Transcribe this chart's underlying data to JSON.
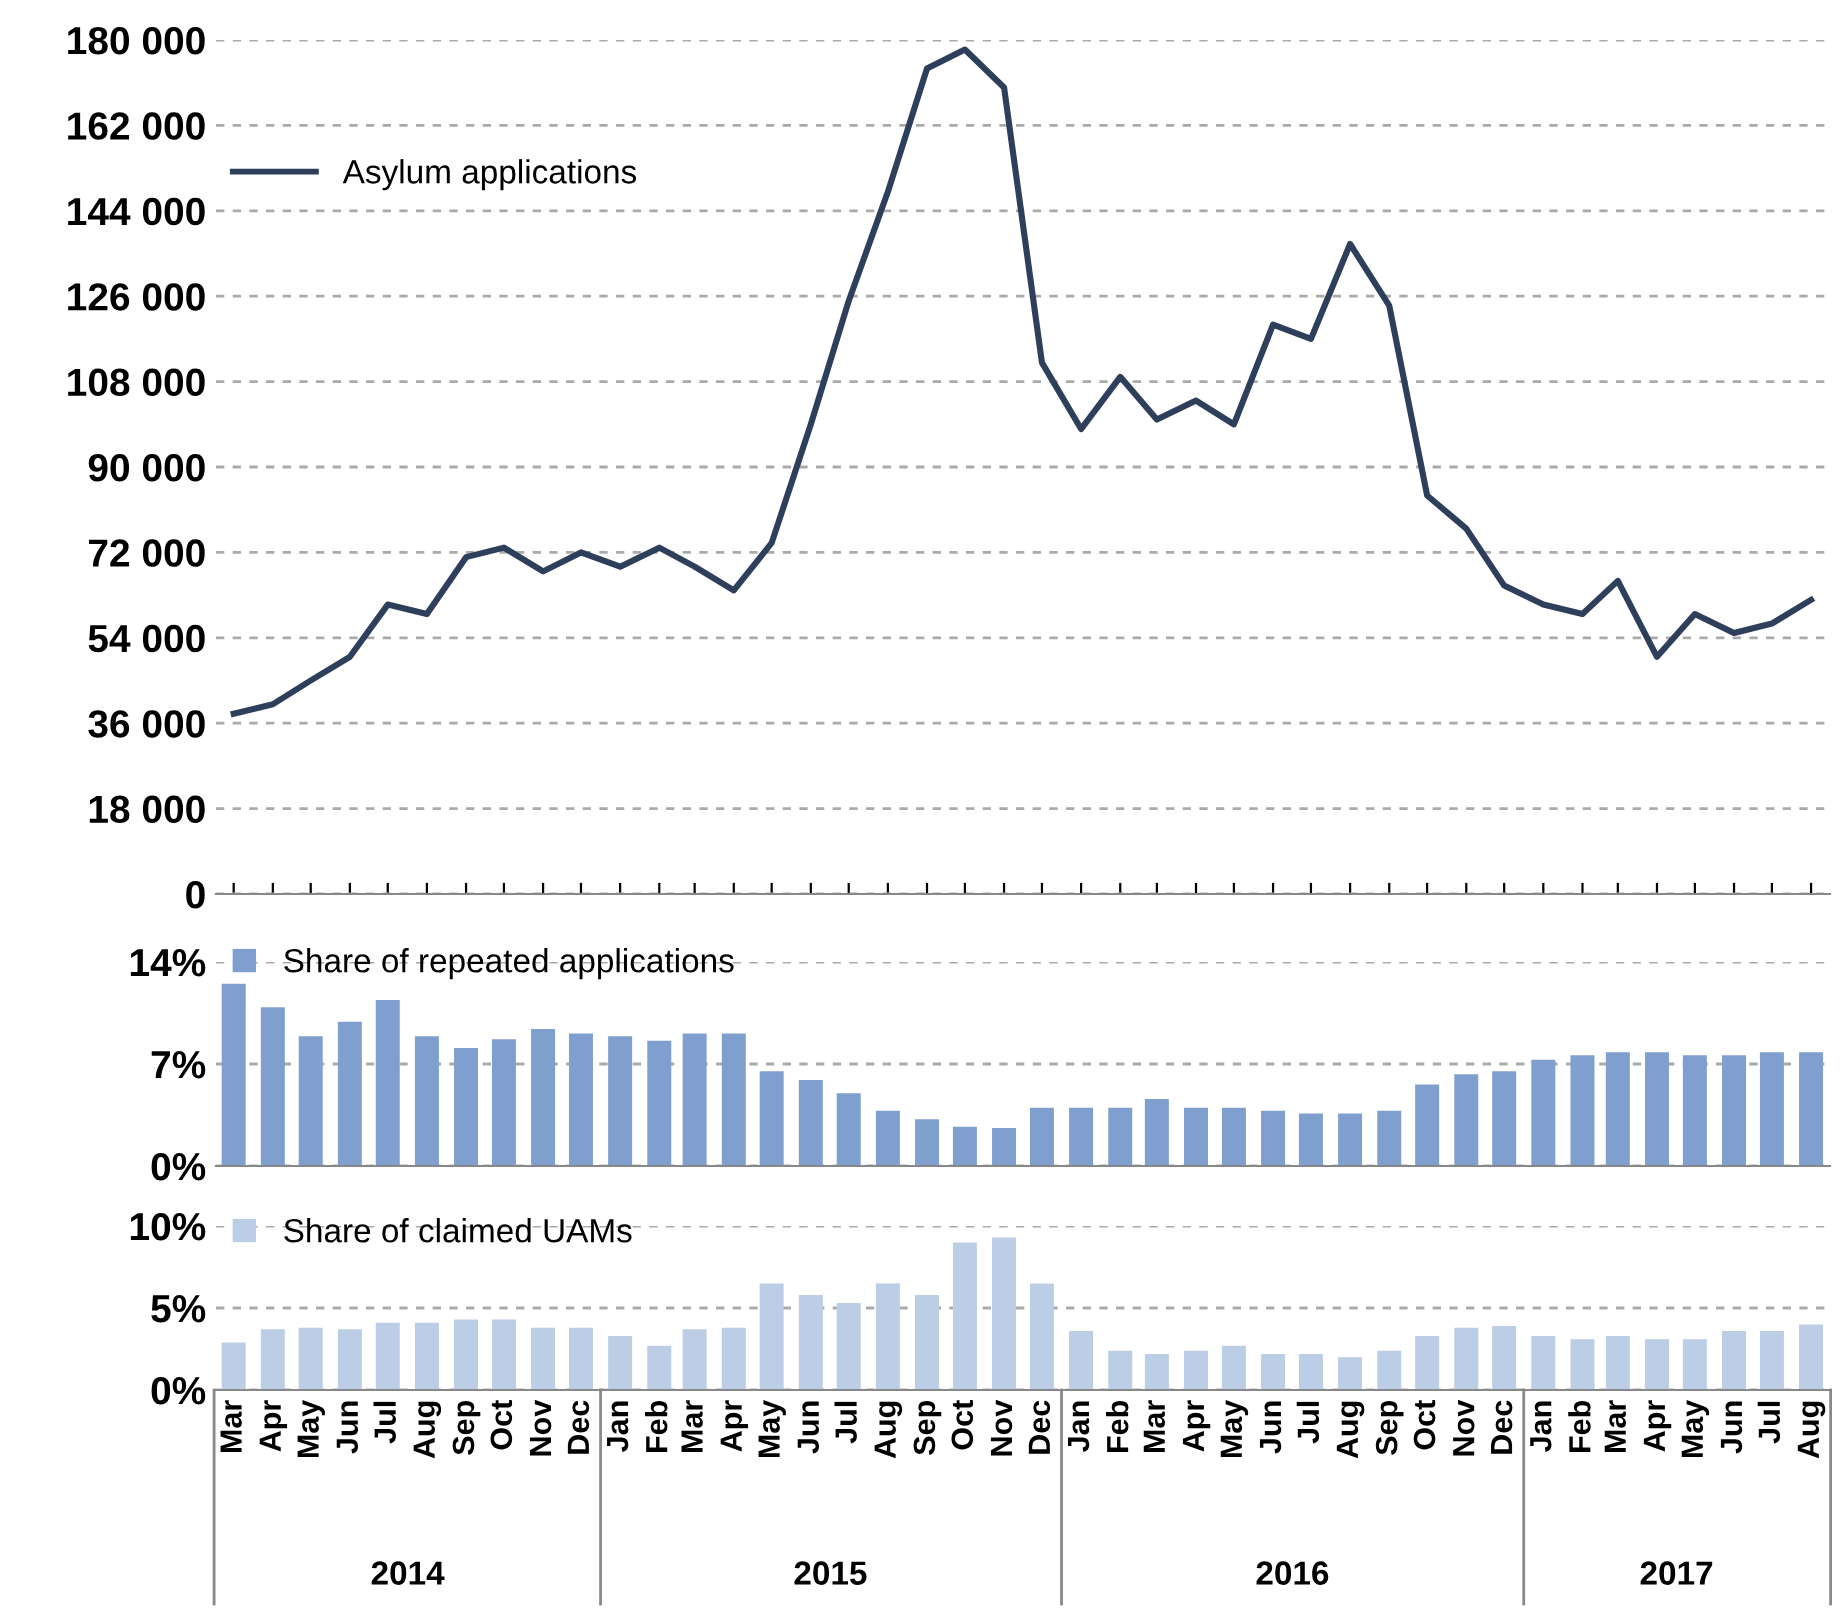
{
  "chart_data": [
    {
      "type": "line",
      "x": [
        "2014-03",
        "2014-04",
        "2014-05",
        "2014-06",
        "2014-07",
        "2014-08",
        "2014-09",
        "2014-10",
        "2014-11",
        "2014-12",
        "2015-01",
        "2015-02",
        "2015-03",
        "2015-04",
        "2015-05",
        "2015-06",
        "2015-07",
        "2015-08",
        "2015-09",
        "2015-10",
        "2015-11",
        "2015-12",
        "2016-01",
        "2016-02",
        "2016-03",
        "2016-04",
        "2016-05",
        "2016-06",
        "2016-07",
        "2016-08",
        "2016-09",
        "2016-10",
        "2016-11",
        "2016-12",
        "2017-01",
        "2017-02",
        "2017-03",
        "2017-04",
        "2017-05",
        "2017-06",
        "2017-07",
        "2017-08"
      ],
      "series": [
        {
          "name": "Asylum applications",
          "color": "#2e3f5c",
          "values": [
            38000,
            40000,
            45000,
            50000,
            61000,
            59000,
            71000,
            73000,
            68000,
            72000,
            69000,
            73000,
            69000,
            64000,
            74000,
            99000,
            125000,
            148000,
            174000,
            178000,
            170000,
            112000,
            98000,
            109000,
            100000,
            104000,
            99000,
            120000,
            117000,
            137000,
            124000,
            84000,
            77000,
            65000,
            61000,
            59000,
            66000,
            50000,
            59000,
            55000,
            57000,
            62000
          ]
        }
      ],
      "xlim": [
        "2014-02-15",
        "2017-08-16"
      ],
      "ylim": [
        0,
        180000
      ],
      "yticks": [
        0,
        {
          "value": 18000,
          "label": "18 000"
        },
        {
          "value": 36000,
          "label": "36 000"
        },
        {
          "value": 54000,
          "label": "54 000"
        },
        {
          "value": 72000,
          "label": "72 000"
        },
        {
          "value": 90000,
          "label": "90 000"
        },
        {
          "value": 108000,
          "label": "108 000"
        },
        {
          "value": 126000,
          "label": "126 000"
        },
        {
          "value": 144000,
          "label": "144 000"
        },
        {
          "value": 162000,
          "label": "162 000"
        },
        {
          "value": 180000,
          "label": "180 000"
        }
      ],
      "grid": "y",
      "legend": "top left",
      "tick_labels": "y",
      "line_style": "solid",
      "marker": "none"
    },
    {
      "type": "bar",
      "x": [
        "2014-03",
        "2014-04",
        "2014-05",
        "2014-06",
        "2014-07",
        "2014-08",
        "2014-09",
        "2014-10",
        "2014-11",
        "2014-12",
        "2015-01",
        "2015-02",
        "2015-03",
        "2015-04",
        "2015-05",
        "2015-06",
        "2015-07",
        "2015-08",
        "2015-09",
        "2015-10",
        "2015-11",
        "2015-12",
        "2016-01",
        "2016-02",
        "2016-03",
        "2016-04",
        "2016-05",
        "2016-06",
        "2016-07",
        "2016-08",
        "2016-09",
        "2016-10",
        "2016-11",
        "2016-12",
        "2017-01",
        "2017-02",
        "2017-03",
        "2017-04",
        "2017-05",
        "2017-06",
        "2017-07",
        "2017-08"
      ],
      "series": [
        {
          "name": "Share of repeated applications",
          "color": "#7f9fcf",
          "values": [
            12.5,
            10.9,
            8.9,
            9.9,
            11.4,
            8.9,
            8.1,
            8.7,
            9.4,
            9.1,
            8.9,
            8.6,
            9.1,
            9.1,
            6.5,
            5.9,
            5.0,
            3.8,
            3.2,
            2.7,
            2.6,
            4.0,
            4.0,
            4.0,
            4.6,
            4.0,
            4.0,
            3.8,
            3.6,
            3.6,
            3.8,
            5.6,
            6.3,
            6.5,
            7.3,
            7.6,
            7.8,
            7.8,
            7.6,
            7.6,
            7.8,
            7.8
          ]
        }
      ],
      "xlim": [
        "2014-02-15",
        "2017-08-16"
      ],
      "ylim": [
        0,
        14
      ],
      "yticks": [
        {
          "value": 0,
          "label": "0%"
        },
        {
          "value": 7,
          "label": "7%"
        },
        {
          "value": 14,
          "label": "14%"
        }
      ],
      "grid": "y",
      "legend": "top left",
      "tick_labels": "y"
    },
    {
      "type": "bar",
      "x": [
        "2014-03",
        "2014-04",
        "2014-05",
        "2014-06",
        "2014-07",
        "2014-08",
        "2014-09",
        "2014-10",
        "2014-11",
        "2014-12",
        "2015-01",
        "2015-02",
        "2015-03",
        "2015-04",
        "2015-05",
        "2015-06",
        "2015-07",
        "2015-08",
        "2015-09",
        "2015-10",
        "2015-11",
        "2015-12",
        "2016-01",
        "2016-02",
        "2016-03",
        "2016-04",
        "2016-05",
        "2016-06",
        "2016-07",
        "2016-08",
        "2016-09",
        "2016-10",
        "2016-11",
        "2016-12",
        "2017-01",
        "2017-02",
        "2017-03",
        "2017-04",
        "2017-05",
        "2017-06",
        "2017-07",
        "2017-08"
      ],
      "series": [
        {
          "name": "Share of claimed UAMs",
          "color": "#bccde6",
          "values": [
            2.9,
            3.7,
            3.8,
            3.7,
            4.1,
            4.1,
            4.3,
            4.3,
            3.8,
            3.8,
            3.3,
            2.7,
            3.7,
            3.8,
            6.5,
            5.8,
            5.3,
            6.5,
            5.8,
            9.0,
            9.3,
            6.5,
            3.6,
            2.4,
            2.2,
            2.4,
            2.7,
            2.2,
            2.2,
            2.0,
            2.4,
            3.3,
            3.8,
            3.9,
            3.3,
            3.1,
            3.3,
            3.1,
            3.1,
            3.6,
            3.6,
            4.0
          ]
        }
      ],
      "xlim": [
        "2014-02-15",
        "2017-08-16"
      ],
      "ylim": [
        0,
        10
      ],
      "yticks": [
        {
          "value": 0,
          "label": "0%"
        },
        {
          "value": 5,
          "label": "5%"
        },
        {
          "value": 10,
          "label": "10%"
        }
      ],
      "xticks": [
        {
          "value": "2014-03",
          "label": "Mar"
        },
        {
          "value": "2014-04",
          "label": "Apr"
        },
        {
          "value": "2014-05",
          "label": "May"
        },
        {
          "value": "2014-06",
          "label": "Jun"
        },
        {
          "value": "2014-07",
          "label": "Jul"
        },
        {
          "value": "2014-08",
          "label": "Aug"
        },
        {
          "value": "2014-09",
          "label": "Sep"
        },
        {
          "value": "2014-10",
          "label": "Oct"
        },
        {
          "value": "2014-11",
          "label": "Nov"
        },
        {
          "value": "2014-12",
          "label": "Dec"
        },
        {
          "value": "2015-01",
          "label": "Jan"
        },
        {
          "value": "2015-02",
          "label": "Feb"
        },
        {
          "value": "2015-03",
          "label": "Mar"
        },
        {
          "value": "2015-04",
          "label": "Apr"
        },
        {
          "value": "2015-05",
          "label": "May"
        },
        {
          "value": "2015-06",
          "label": "Jun"
        },
        {
          "value": "2015-07",
          "label": "Jul"
        },
        {
          "value": "2015-08",
          "label": "Aug"
        },
        {
          "value": "2015-09",
          "label": "Sep"
        },
        {
          "value": "2015-10",
          "label": "Oct"
        },
        {
          "value": "2015-11",
          "label": "Nov"
        },
        {
          "value": "2015-12",
          "label": "Dec"
        },
        {
          "value": "2016-01",
          "label": "Jan"
        },
        {
          "value": "2016-02",
          "label": "Feb"
        },
        {
          "value": "2016-03",
          "label": "Mar"
        },
        {
          "value": "2016-04",
          "label": "Apr"
        },
        {
          "value": "2016-05",
          "label": "May"
        },
        {
          "value": "2016-06",
          "label": "Jun"
        },
        {
          "value": "2016-07",
          "label": "Jul"
        },
        {
          "value": "2016-08",
          "label": "Aug"
        },
        {
          "value": "2016-09",
          "label": "Sep"
        },
        {
          "value": "2016-10",
          "label": "Oct"
        },
        {
          "value": "2016-11",
          "label": "Nov"
        },
        {
          "value": "2016-12",
          "label": "Dec"
        },
        {
          "value": "2017-01",
          "label": "Jan"
        },
        {
          "value": "2017-02",
          "label": "Feb"
        },
        {
          "value": "2017-03",
          "label": "Mar"
        },
        {
          "value": "2017-04",
          "label": "Apr"
        },
        {
          "value": "2017-05",
          "label": "May"
        },
        {
          "value": "2017-06",
          "label": "Jun"
        },
        {
          "value": "2017-07",
          "label": "Jul"
        },
        {
          "value": "2017-08",
          "label": "Aug"
        }
      ],
      "annotations": [
        "2014",
        "2015",
        "2016",
        "2017"
      ],
      "grid": "y",
      "legend": "top left"
    }
  ]
}
